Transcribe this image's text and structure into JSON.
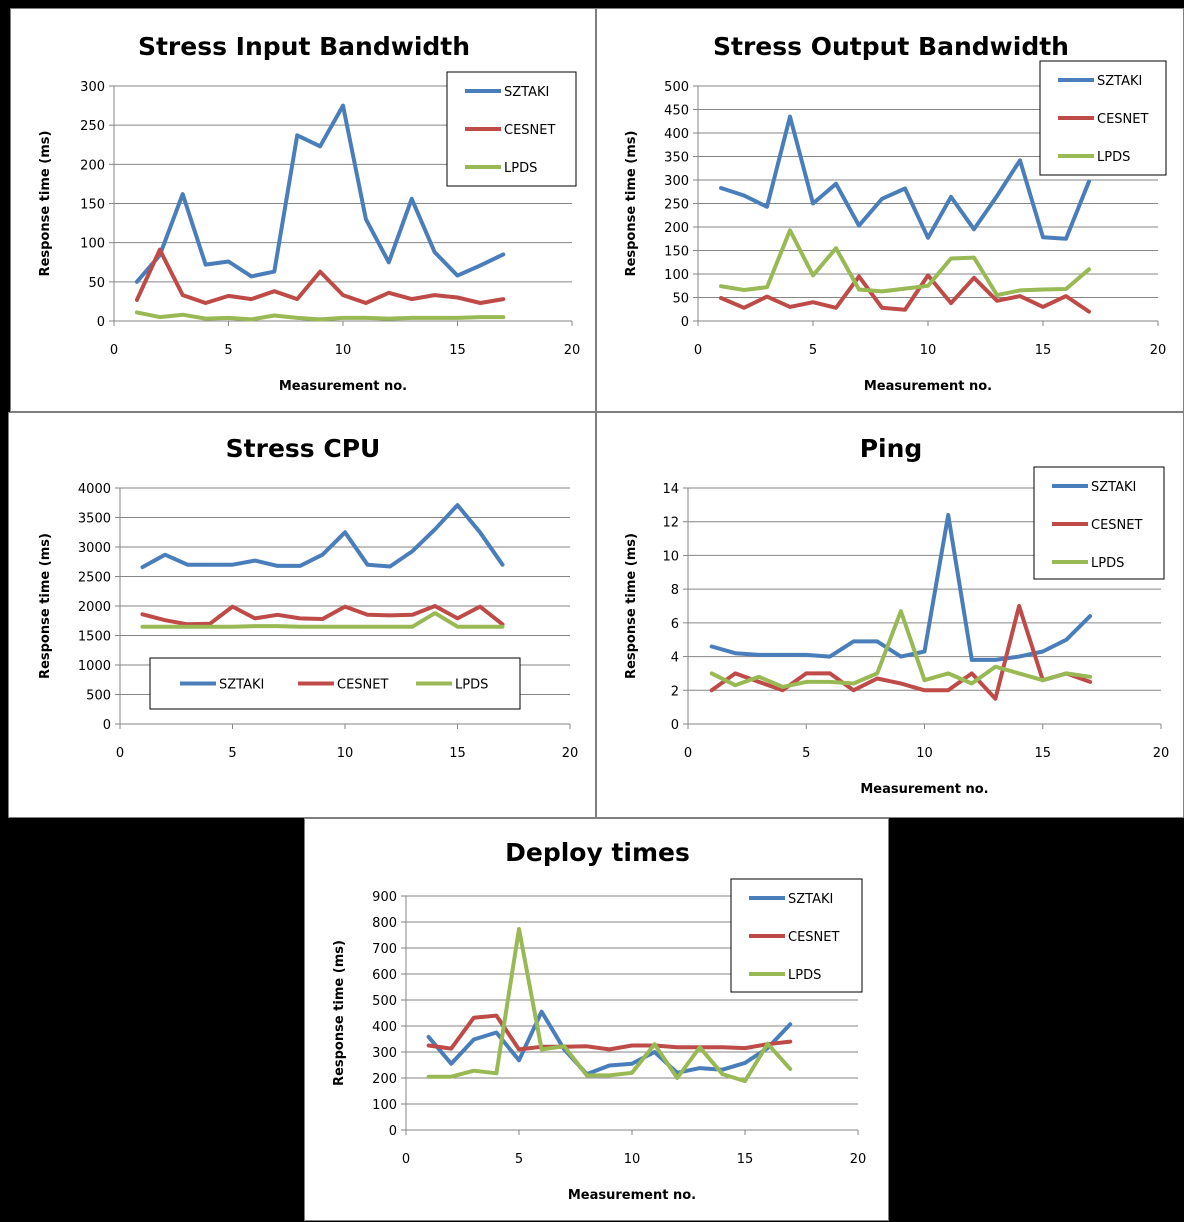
{
  "colors": {
    "SZTAKI": "#4a7ebb",
    "CESNET": "#be4b48",
    "LPDS": "#98b954"
  },
  "chart_data": [
    {
      "type": "line",
      "title": "Stress Input Bandwidth",
      "xlabel": "Measurement no.",
      "ylabel": "Response time (ms)",
      "xlim": [
        0,
        20
      ],
      "xticks": [
        0,
        5,
        10,
        15,
        20
      ],
      "ylim": [
        0,
        300
      ],
      "yticks": [
        0,
        50,
        100,
        150,
        200,
        250,
        300
      ],
      "legend": "top-right-vertical",
      "x": [
        1,
        2,
        3,
        4,
        5,
        6,
        7,
        8,
        9,
        10,
        11,
        12,
        13,
        14,
        15,
        16,
        17
      ],
      "series": [
        {
          "name": "SZTAKI",
          "values": [
            50,
            84,
            162,
            72,
            76,
            57,
            63,
            237,
            223,
            275,
            130,
            75,
            156,
            88,
            58,
            71,
            85
          ]
        },
        {
          "name": "CESNET",
          "values": [
            27,
            91,
            33,
            23,
            32,
            28,
            38,
            28,
            63,
            33,
            23,
            36,
            28,
            33,
            30,
            23,
            28
          ]
        },
        {
          "name": "LPDS",
          "values": [
            11,
            5,
            8,
            3,
            4,
            2,
            7,
            4,
            2,
            4,
            4,
            3,
            4,
            4,
            4,
            5,
            5
          ]
        }
      ]
    },
    {
      "type": "line",
      "title": "Stress Output Bandwidth",
      "xlabel": "Measurement no.",
      "ylabel": "Response time (ms)",
      "xlim": [
        0,
        20
      ],
      "xticks": [
        0,
        5,
        10,
        15,
        20
      ],
      "ylim": [
        0,
        500
      ],
      "yticks": [
        0,
        50,
        100,
        150,
        200,
        250,
        300,
        350,
        400,
        450,
        500
      ],
      "legend": "top-right-vertical",
      "x": [
        1,
        2,
        3,
        4,
        5,
        6,
        7,
        8,
        9,
        10,
        11,
        12,
        13,
        14,
        15,
        16,
        17
      ],
      "series": [
        {
          "name": "SZTAKI",
          "values": [
            283,
            267,
            243,
            435,
            250,
            292,
            203,
            260,
            282,
            177,
            264,
            195,
            266,
            342,
            178,
            175,
            297
          ]
        },
        {
          "name": "CESNET",
          "values": [
            49,
            28,
            52,
            30,
            40,
            28,
            95,
            28,
            24,
            97,
            38,
            92,
            43,
            53,
            30,
            53,
            20
          ]
        },
        {
          "name": "LPDS",
          "values": [
            74,
            66,
            72,
            193,
            97,
            155,
            67,
            63,
            69,
            75,
            133,
            135,
            55,
            65,
            67,
            68,
            110
          ]
        }
      ]
    },
    {
      "type": "line",
      "title": "Stress CPU",
      "xlabel": "",
      "ylabel": "Response time (ms)",
      "xlim": [
        0,
        20
      ],
      "xticks": [
        0,
        5,
        10,
        15,
        20
      ],
      "ylim": [
        0,
        4000
      ],
      "yticks": [
        0,
        500,
        1000,
        1500,
        2000,
        2500,
        3000,
        3500,
        4000
      ],
      "legend": "bottom-horizontal",
      "x": [
        1,
        2,
        3,
        4,
        5,
        6,
        7,
        8,
        9,
        10,
        11,
        12,
        13,
        14,
        15,
        16,
        17
      ],
      "series": [
        {
          "name": "SZTAKI",
          "values": [
            2660,
            2870,
            2700,
            2700,
            2700,
            2770,
            2680,
            2680,
            2870,
            3250,
            2700,
            2670,
            2930,
            3300,
            3710,
            3250,
            2700
          ]
        },
        {
          "name": "CESNET",
          "values": [
            1860,
            1760,
            1690,
            1700,
            1990,
            1790,
            1850,
            1790,
            1780,
            1990,
            1850,
            1840,
            1850,
            2000,
            1790,
            1990,
            1690
          ]
        },
        {
          "name": "LPDS",
          "values": [
            1650,
            1650,
            1650,
            1650,
            1650,
            1660,
            1660,
            1650,
            1650,
            1650,
            1650,
            1650,
            1650,
            1880,
            1650,
            1650,
            1650
          ]
        }
      ]
    },
    {
      "type": "line",
      "title": "Ping",
      "xlabel": "Measurement no.",
      "ylabel": "Response time (ms)",
      "xlim": [
        0,
        20
      ],
      "xticks": [
        0,
        5,
        10,
        15,
        20
      ],
      "ylim": [
        0,
        14
      ],
      "yticks": [
        0,
        2,
        4,
        6,
        8,
        10,
        12,
        14
      ],
      "legend": "top-right-vertical",
      "x": [
        1,
        2,
        3,
        4,
        5,
        6,
        7,
        8,
        9,
        10,
        11,
        12,
        13,
        14,
        15,
        16,
        17
      ],
      "series": [
        {
          "name": "SZTAKI",
          "values": [
            4.6,
            4.2,
            4.1,
            4.1,
            4.1,
            4.0,
            4.9,
            4.9,
            4.0,
            4.3,
            12.4,
            3.8,
            3.8,
            4.0,
            4.3,
            5.0,
            6.4
          ]
        },
        {
          "name": "CESNET",
          "values": [
            2.0,
            3.0,
            2.5,
            2.0,
            3.0,
            3.0,
            2.0,
            2.7,
            2.4,
            2.0,
            2.0,
            3.0,
            1.5,
            7.0,
            2.6,
            3.0,
            2.5
          ]
        },
        {
          "name": "LPDS",
          "values": [
            3.0,
            2.3,
            2.8,
            2.2,
            2.5,
            2.5,
            2.4,
            3.0,
            6.7,
            2.6,
            3.0,
            2.4,
            3.4,
            3.0,
            2.6,
            3.0,
            2.8
          ]
        }
      ]
    },
    {
      "type": "line",
      "title": "Deploy times",
      "xlabel": "Measurement no.",
      "ylabel": "Response time (ms)",
      "xlim": [
        0,
        20
      ],
      "xticks": [
        0,
        5,
        10,
        15,
        20
      ],
      "ylim": [
        0,
        900
      ],
      "yticks": [
        0,
        100,
        200,
        300,
        400,
        500,
        600,
        700,
        800,
        900
      ],
      "legend": "top-right-vertical",
      "x": [
        1,
        2,
        3,
        4,
        5,
        6,
        7,
        8,
        9,
        10,
        11,
        12,
        13,
        14,
        15,
        16,
        17
      ],
      "series": [
        {
          "name": "SZTAKI",
          "values": [
            358,
            255,
            348,
            375,
            268,
            455,
            310,
            215,
            248,
            255,
            300,
            220,
            238,
            232,
            258,
            315,
            407
          ]
        },
        {
          "name": "CESNET",
          "values": [
            325,
            313,
            432,
            440,
            310,
            320,
            320,
            322,
            310,
            325,
            325,
            318,
            318,
            318,
            315,
            330,
            340
          ]
        },
        {
          "name": "LPDS",
          "values": [
            205,
            205,
            228,
            218,
            773,
            310,
            322,
            210,
            210,
            220,
            330,
            200,
            318,
            215,
            188,
            332,
            235
          ]
        }
      ]
    }
  ]
}
